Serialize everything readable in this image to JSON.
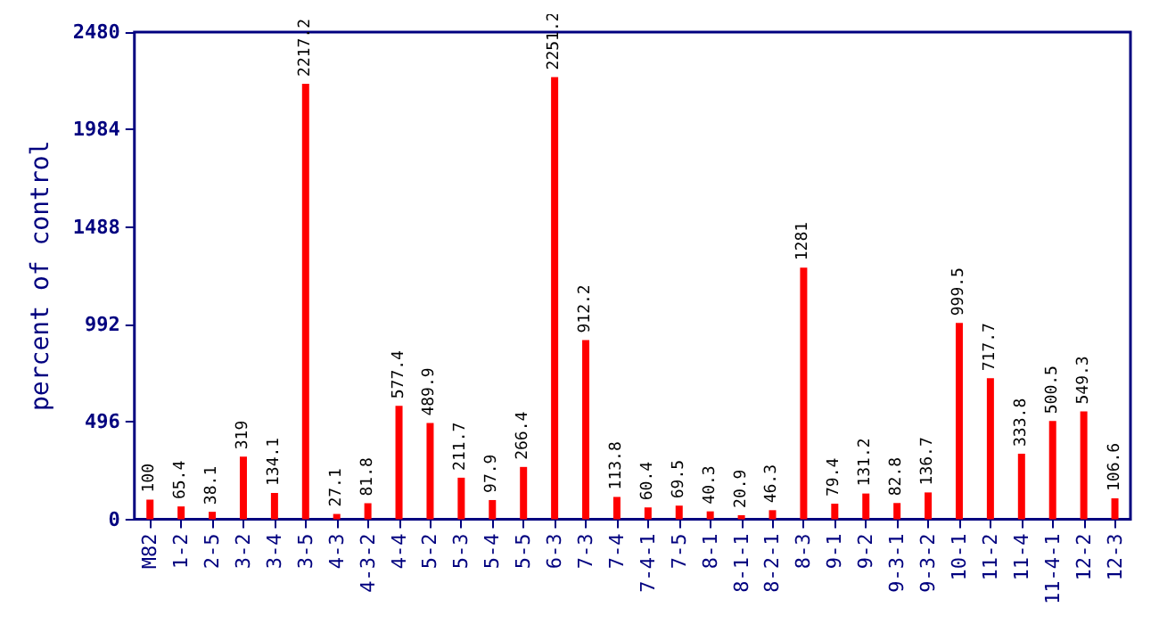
{
  "chart_data": {
    "type": "bar",
    "ylabel": "percent of control",
    "categories": [
      "M82",
      "1-2",
      "2-5",
      "3-2",
      "3-4",
      "3-5",
      "4-3",
      "4-3-2",
      "4-4",
      "5-2",
      "5-3",
      "5-4",
      "5-5",
      "6-3",
      "7-3",
      "7-4",
      "7-4-1",
      "7-5",
      "8-1",
      "8-1-1",
      "8-2-1",
      "8-3",
      "9-1",
      "9-2",
      "9-3-1",
      "9-3-2",
      "10-1",
      "11-2",
      "11-4",
      "11-4-1",
      "12-2",
      "12-3"
    ],
    "values": [
      100,
      65.4,
      38.1,
      319,
      134.1,
      2217.2,
      27.1,
      81.8,
      577.4,
      489.9,
      211.7,
      97.9,
      266.4,
      2251.2,
      912.2,
      113.8,
      60.4,
      69.5,
      40.3,
      20.9,
      46.3,
      1281,
      79.4,
      131.2,
      82.8,
      136.7,
      999.5,
      717.7,
      333.8,
      500.5,
      549.3,
      106.6
    ],
    "color": "#ff0000",
    "ylim": [
      0,
      2480
    ],
    "yticks": [
      0,
      496,
      992,
      1488,
      1984,
      2480
    ],
    "grid": false,
    "data_labels": true
  }
}
